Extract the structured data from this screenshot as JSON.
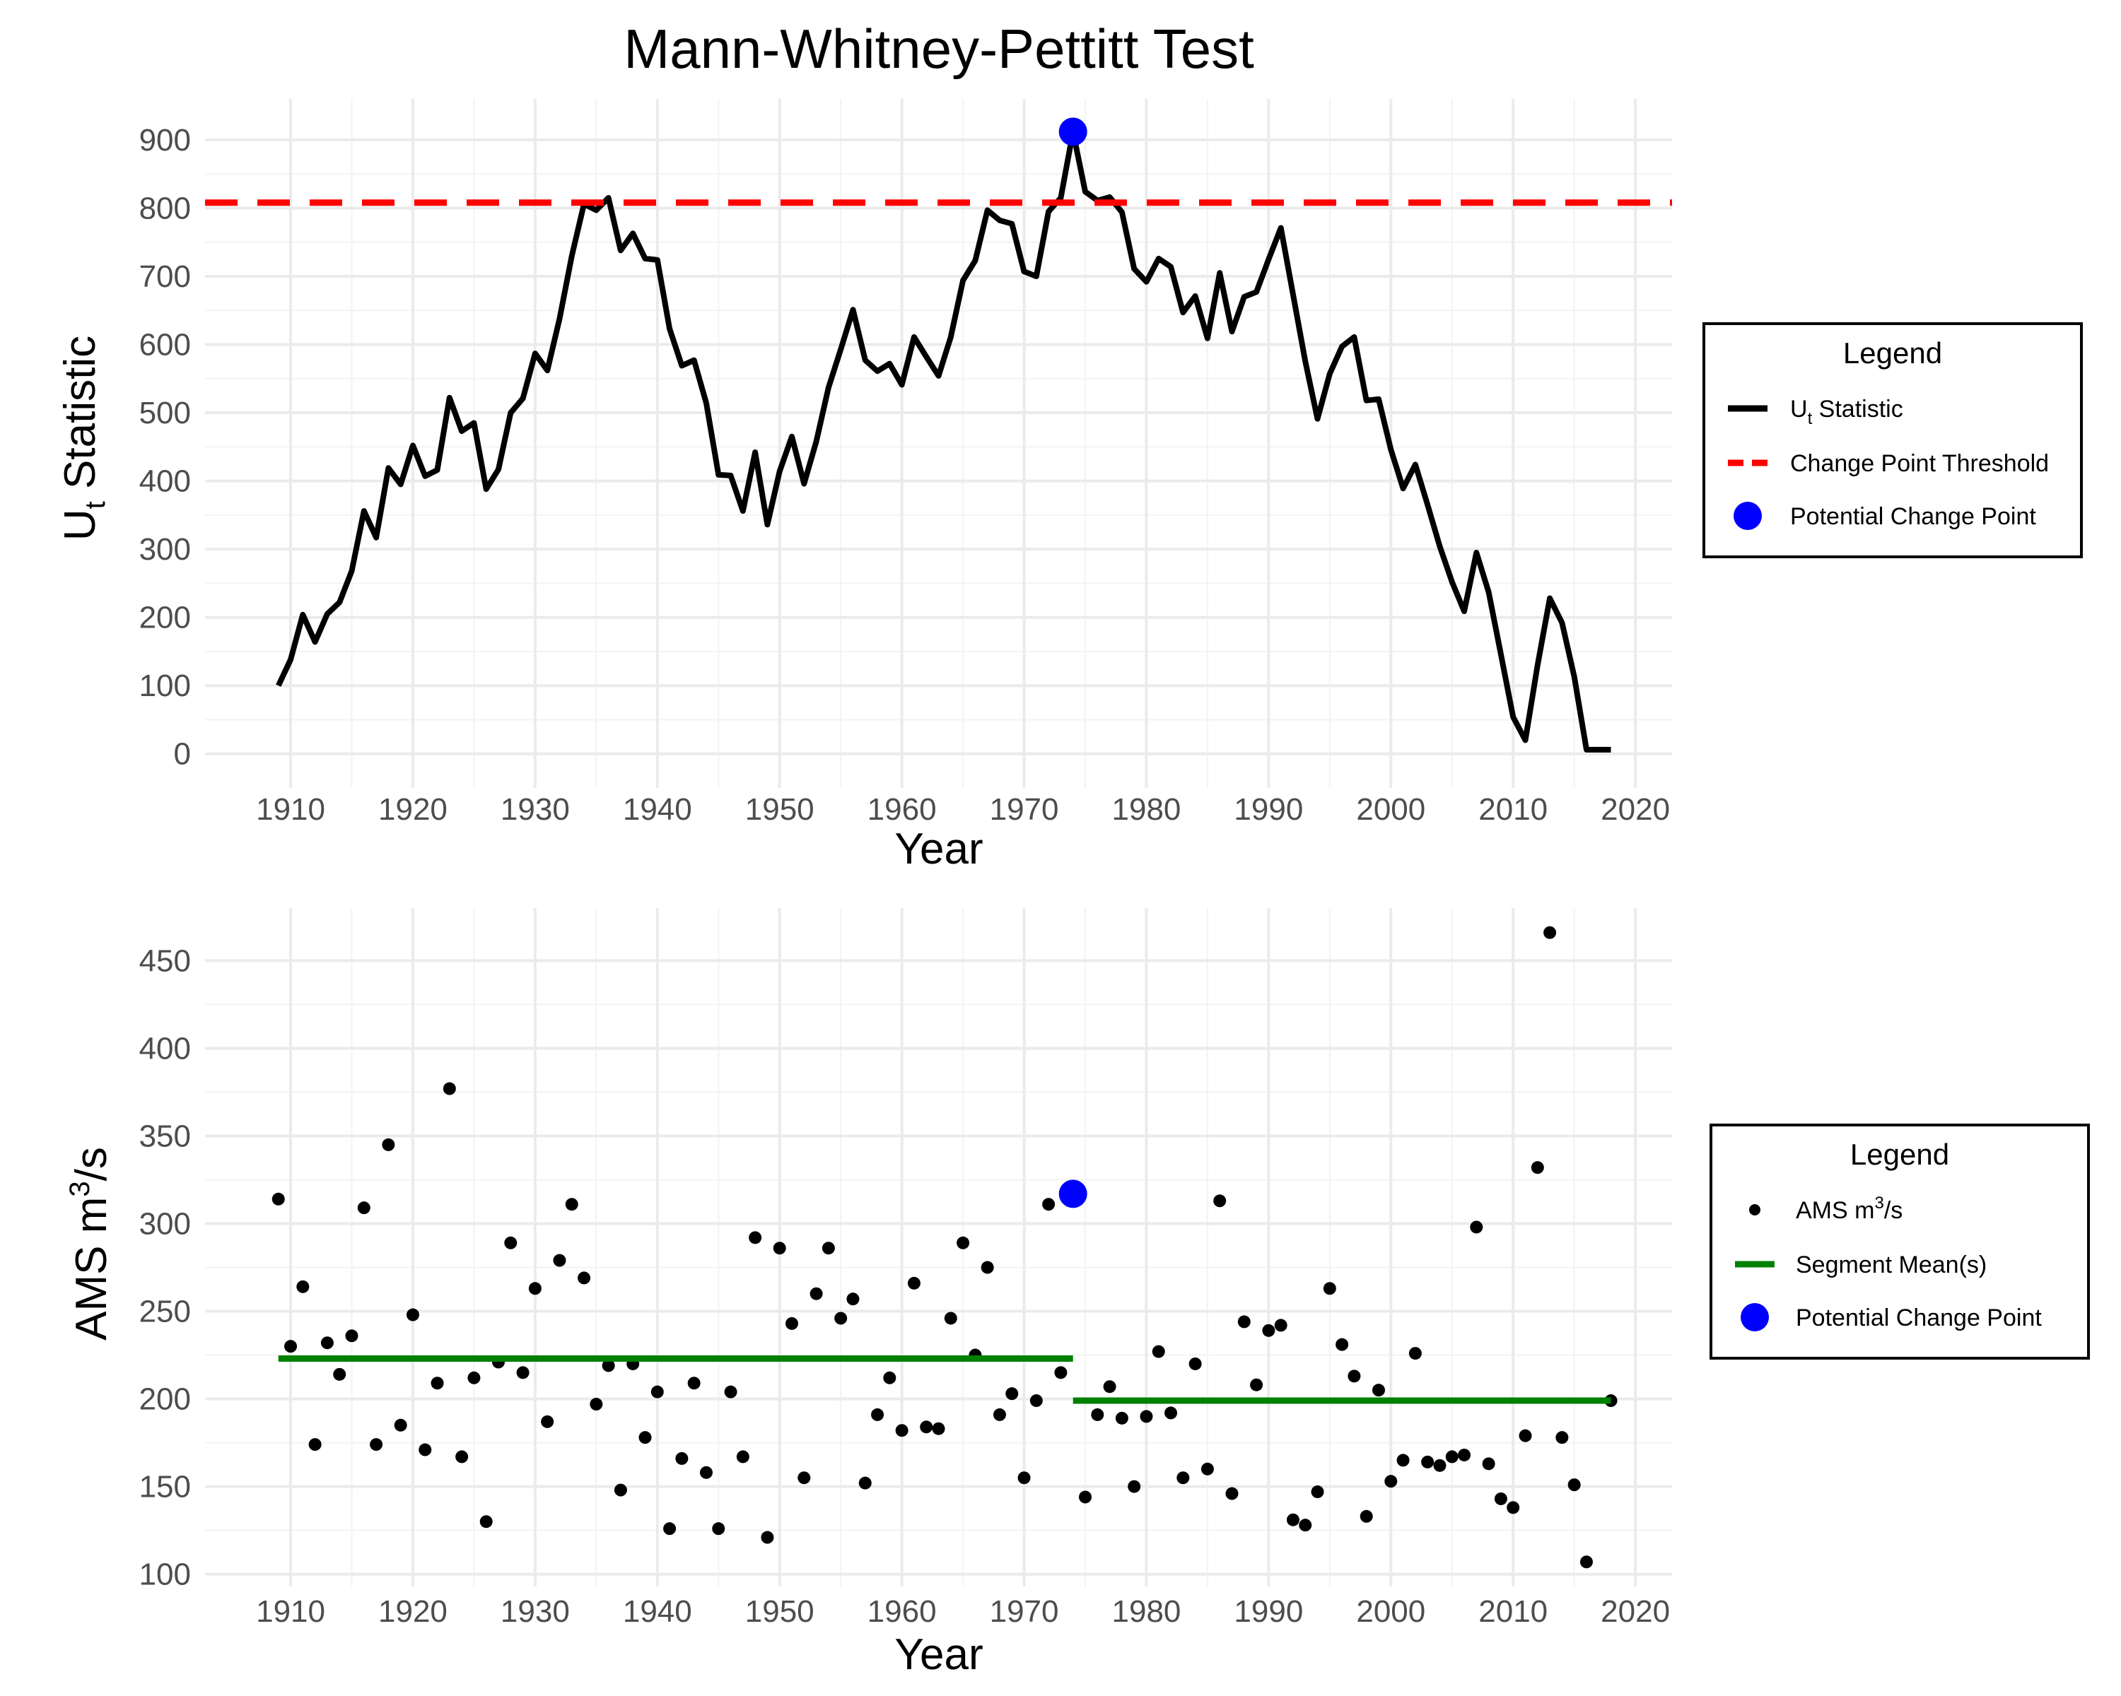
{
  "title": "Mann-Whitney-Pettitt Test",
  "colors": {
    "ut_line": "#000000",
    "threshold": "#ff0000",
    "change_point": "#0000ff",
    "segment_mean": "#008000",
    "points": "#000000"
  },
  "chart_data": [
    {
      "type": "line",
      "xlabel": "Year",
      "ylabel_main": "U",
      "ylabel_sub": "t",
      "ylabel_rest": " Statistic",
      "xlim": [
        1903,
        2023
      ],
      "ylim": [
        -50,
        960
      ],
      "xticks": [
        1910,
        1920,
        1930,
        1940,
        1950,
        1960,
        1970,
        1980,
        1990,
        2000,
        2010,
        2020
      ],
      "yticks": [
        0,
        100,
        200,
        300,
        400,
        500,
        600,
        700,
        800,
        900
      ],
      "grid": true,
      "legend_position": "right",
      "legend": {
        "title": "Legend",
        "items": [
          {
            "key": "line",
            "main": "U",
            "sub": "t",
            "rest": " Statistic"
          },
          {
            "key": "dashed",
            "main": "Change Point Threshold",
            "sub": "",
            "rest": ""
          },
          {
            "key": "dot",
            "main": "Potential Change Point",
            "sub": "",
            "rest": ""
          }
        ]
      },
      "threshold": 808,
      "change_point": {
        "x": 1974,
        "y": 912
      },
      "x": [
        1909,
        1910,
        1911,
        1912,
        1913,
        1914,
        1915,
        1916,
        1917,
        1918,
        1919,
        1920,
        1921,
        1922,
        1923,
        1924,
        1925,
        1926,
        1927,
        1928,
        1929,
        1930,
        1931,
        1932,
        1933,
        1934,
        1935,
        1936,
        1937,
        1938,
        1939,
        1940,
        1941,
        1942,
        1943,
        1944,
        1945,
        1946,
        1947,
        1948,
        1949,
        1950,
        1951,
        1952,
        1953,
        1954,
        1955,
        1956,
        1957,
        1958,
        1959,
        1960,
        1961,
        1962,
        1963,
        1964,
        1965,
        1966,
        1967,
        1968,
        1969,
        1970,
        1971,
        1972,
        1973,
        1974,
        1975,
        1976,
        1977,
        1978,
        1979,
        1980,
        1981,
        1982,
        1983,
        1984,
        1985,
        1986,
        1987,
        1988,
        1989,
        1990,
        1991,
        1992,
        1993,
        1994,
        1995,
        1996,
        1997,
        1998,
        1999,
        2000,
        2001,
        2002,
        2003,
        2004,
        2005,
        2006,
        2007,
        2008,
        2009,
        2010,
        2011,
        2012,
        2013,
        2014,
        2015,
        2016,
        2017,
        2018
      ],
      "y": [
        100,
        138,
        204,
        164,
        205,
        222,
        268,
        356,
        317,
        419,
        395,
        452,
        407,
        416,
        522,
        473,
        485,
        388,
        417,
        500,
        521,
        587,
        562,
        638,
        730,
        806,
        797,
        815,
        738,
        763,
        726,
        724,
        623,
        569,
        577,
        514,
        409,
        408,
        356,
        442,
        336,
        414,
        465,
        396,
        458,
        537,
        593,
        651,
        577,
        561,
        572,
        541,
        611,
        582,
        554,
        611,
        694,
        723,
        797,
        782,
        777,
        707,
        700,
        795,
        815,
        912,
        824,
        811,
        816,
        794,
        711,
        692,
        726,
        714,
        647,
        671,
        609,
        705,
        619,
        670,
        677,
        725,
        771,
        673,
        575,
        491,
        557,
        597,
        611,
        518,
        520,
        446,
        389,
        424,
        365,
        304,
        252,
        209,
        295,
        237,
        146,
        54,
        20,
        130,
        228,
        192,
        113,
        6,
        6,
        6
      ]
    },
    {
      "type": "scatter",
      "xlabel": "Year",
      "ylabel_main": "AMS m",
      "ylabel_sup": "3",
      "ylabel_rest": "/s",
      "xlim": [
        1903,
        2023
      ],
      "ylim": [
        93,
        480
      ],
      "xticks": [
        1910,
        1920,
        1930,
        1940,
        1950,
        1960,
        1970,
        1980,
        1990,
        2000,
        2010,
        2020
      ],
      "yticks": [
        100,
        150,
        200,
        250,
        300,
        350,
        400,
        450
      ],
      "grid": true,
      "legend_position": "right",
      "legend": {
        "title": "Legend",
        "items": [
          {
            "key": "point",
            "main": "AMS m",
            "sup": "3",
            "rest": "/s"
          },
          {
            "key": "green",
            "main": "Segment Mean(s)",
            "sup": "",
            "rest": ""
          },
          {
            "key": "dot",
            "main": "Potential Change Point",
            "sup": "",
            "rest": ""
          }
        ]
      },
      "change_point": {
        "x": 1974,
        "y": 317
      },
      "segments": [
        {
          "x0": 1909,
          "x1": 1974,
          "y": 223
        },
        {
          "x0": 1974,
          "x1": 2018,
          "y": 199
        }
      ],
      "x": [
        1909,
        1910,
        1911,
        1912,
        1913,
        1914,
        1915,
        1916,
        1917,
        1918,
        1919,
        1920,
        1921,
        1922,
        1923,
        1924,
        1925,
        1926,
        1927,
        1928,
        1929,
        1930,
        1931,
        1932,
        1933,
        1934,
        1935,
        1936,
        1937,
        1938,
        1939,
        1940,
        1941,
        1942,
        1943,
        1944,
        1945,
        1946,
        1947,
        1948,
        1949,
        1950,
        1951,
        1952,
        1953,
        1954,
        1955,
        1956,
        1957,
        1958,
        1959,
        1960,
        1961,
        1962,
        1963,
        1964,
        1965,
        1966,
        1967,
        1968,
        1969,
        1970,
        1971,
        1972,
        1973,
        1975,
        1976,
        1977,
        1978,
        1979,
        1980,
        1981,
        1982,
        1983,
        1984,
        1985,
        1986,
        1987,
        1988,
        1989,
        1990,
        1991,
        1992,
        1993,
        1994,
        1995,
        1996,
        1997,
        1998,
        1999,
        2000,
        2001,
        2002,
        2003,
        2004,
        2005,
        2006,
        2007,
        2008,
        2009,
        2010,
        2011,
        2012,
        2013,
        2014,
        2015,
        2016,
        2018
      ],
      "y": [
        314,
        230,
        264,
        174,
        232,
        214,
        236,
        309,
        174,
        345,
        185,
        248,
        171,
        209,
        377,
        167,
        212,
        130,
        221,
        289,
        215,
        263,
        187,
        279,
        311,
        269,
        197,
        219,
        148,
        220,
        178,
        204,
        126,
        166,
        209,
        158,
        126,
        204,
        167,
        292,
        121,
        286,
        243,
        155,
        260,
        286,
        246,
        257,
        152,
        191,
        212,
        182,
        266,
        184,
        183,
        246,
        289,
        225,
        275,
        191,
        203,
        155,
        199,
        311,
        215,
        144,
        191,
        207,
        189,
        150,
        190,
        227,
        192,
        155,
        220,
        160,
        313,
        146,
        244,
        208,
        239,
        242,
        131,
        128,
        147,
        263,
        231,
        213,
        133,
        205,
        153,
        165,
        226,
        164,
        162,
        167,
        168,
        298,
        163,
        143,
        138,
        179,
        332,
        466,
        178,
        151,
        107,
        199
      ]
    }
  ]
}
